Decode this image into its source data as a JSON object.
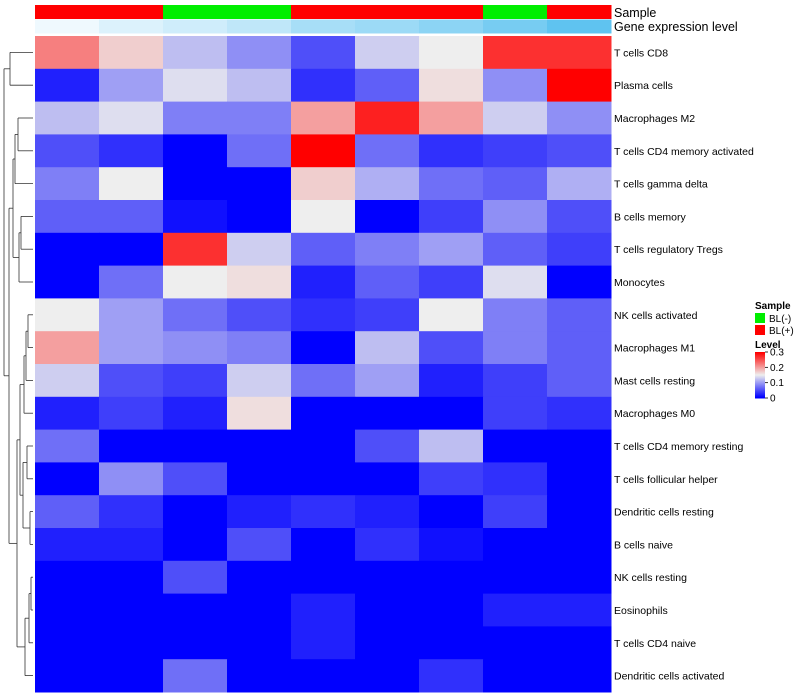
{
  "chart_data": {
    "type": "heatmap",
    "annotation_labels": {
      "sample": "Sample",
      "gene_expression": "Gene expression level"
    },
    "columns": 9,
    "sample_annotation": [
      "BL(+)",
      "BL(+)",
      "BL(-)",
      "BL(-)",
      "BL(+)",
      "BL(+)",
      "BL(+)",
      "BL(-)",
      "BL(+)"
    ],
    "gene_expression_annotation": [
      0.1,
      0.22,
      0.3,
      0.4,
      0.55,
      0.62,
      0.72,
      0.85,
      1.0
    ],
    "rows": [
      "T cells CD8",
      "Plasma cells",
      "Macrophages M2",
      "T cells CD4 memory activated",
      "T cells gamma delta",
      "B cells memory",
      "T cells regulatory  Tregs",
      "Monocytes",
      "NK cells activated",
      "Macrophages M1",
      "Mast cells resting",
      "Macrophages M0",
      "T cells CD4 memory resting",
      "T cells follicular helper",
      "Dendritic cells resting",
      "B cells naive",
      "NK cells resting",
      "Eosinophils",
      "T cells CD4 naive",
      "Dendritic cells activated"
    ],
    "values": [
      [
        0.22,
        0.17,
        0.12,
        0.09,
        0.05,
        0.13,
        0.15,
        0.27,
        0.27
      ],
      [
        0.02,
        0.1,
        0.14,
        0.12,
        0.03,
        0.06,
        0.16,
        0.09,
        0.3
      ],
      [
        0.12,
        0.14,
        0.08,
        0.08,
        0.2,
        0.28,
        0.2,
        0.13,
        0.09
      ],
      [
        0.05,
        0.03,
        0.0,
        0.07,
        0.3,
        0.07,
        0.03,
        0.04,
        0.05
      ],
      [
        0.08,
        0.15,
        0.0,
        0.0,
        0.17,
        0.11,
        0.07,
        0.06,
        0.11
      ],
      [
        0.06,
        0.06,
        0.01,
        0.0,
        0.15,
        0.0,
        0.04,
        0.09,
        0.05
      ],
      [
        0.0,
        0.0,
        0.27,
        0.13,
        0.06,
        0.08,
        0.1,
        0.06,
        0.04
      ],
      [
        0.0,
        0.07,
        0.15,
        0.16,
        0.02,
        0.06,
        0.04,
        0.14,
        0.0
      ],
      [
        0.15,
        0.1,
        0.07,
        0.05,
        0.03,
        0.04,
        0.15,
        0.08,
        0.06
      ],
      [
        0.2,
        0.1,
        0.09,
        0.08,
        0.0,
        0.12,
        0.05,
        0.08,
        0.06
      ],
      [
        0.13,
        0.05,
        0.04,
        0.13,
        0.07,
        0.1,
        0.02,
        0.04,
        0.06
      ],
      [
        0.02,
        0.04,
        0.02,
        0.16,
        0.0,
        0.0,
        0.0,
        0.04,
        0.03
      ],
      [
        0.07,
        0.0,
        0.0,
        0.0,
        0.0,
        0.05,
        0.12,
        0.0,
        0.0
      ],
      [
        0.0,
        0.09,
        0.05,
        0.0,
        0.0,
        0.0,
        0.04,
        0.03,
        0.0
      ],
      [
        0.06,
        0.03,
        0.0,
        0.02,
        0.03,
        0.02,
        0.0,
        0.04,
        0.0
      ],
      [
        0.02,
        0.02,
        0.0,
        0.05,
        0.0,
        0.03,
        0.01,
        0.0,
        0.0
      ],
      [
        0.0,
        0.0,
        0.05,
        0.0,
        0.0,
        0.0,
        0.0,
        0.0,
        0.0
      ],
      [
        0.0,
        0.0,
        0.0,
        0.0,
        0.02,
        0.0,
        0.0,
        0.02,
        0.02
      ],
      [
        0.0,
        0.0,
        0.0,
        0.0,
        0.02,
        0.0,
        0.0,
        0.0,
        0.0
      ],
      [
        0.0,
        0.0,
        0.07,
        0.0,
        0.0,
        0.0,
        0.03,
        0.0,
        0.0
      ]
    ],
    "color_scale": {
      "min": 0,
      "mid": 0.15,
      "max": 0.3,
      "low": "#0000ff",
      "midColor": "#eeeeee",
      "high": "#ff0000"
    },
    "legend": {
      "sample": {
        "title": "Sample",
        "items": [
          {
            "label": "BL(-)",
            "color": "#00ee00"
          },
          {
            "label": "BL(+)",
            "color": "#ff0000"
          }
        ]
      },
      "level": {
        "title": "Level",
        "ticks": [
          "0.3",
          "0.2",
          "0.1",
          "0"
        ],
        "tick_values": [
          0.3,
          0.2,
          0.1,
          0
        ]
      },
      "placement": "right"
    },
    "row_dendrogram": true
  }
}
